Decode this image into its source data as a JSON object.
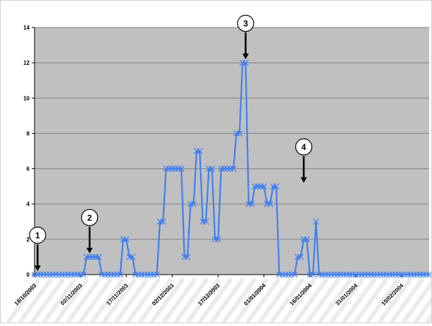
{
  "chart_data": {
    "type": "line",
    "title": "",
    "xlabel": "",
    "ylabel": "",
    "ylim": [
      0,
      14
    ],
    "yticks": [
      "0",
      "2",
      "4",
      "6",
      "8",
      "10",
      "12",
      "14"
    ],
    "xlim": [
      "2003-10-18",
      "2004-02-24"
    ],
    "xtick_labels": [
      "18/10/2003",
      "02/11/2003",
      "17/11/2003",
      "02/12/2003",
      "17/12/2003",
      "01/01/2004",
      "16/01/2004",
      "31/01/2004",
      "15/02/2004"
    ],
    "grid": {
      "horizontal": true,
      "vertical": false
    },
    "legend": "none",
    "colors": {
      "line": "#3f7ff0",
      "marker": "#3f7ff0",
      "plot_area": "#c0c0c0",
      "gridline": "#7f7f7f",
      "arrow": "#000000"
    },
    "series": [
      {
        "x": [
          "2003-10-18",
          "2003-10-19",
          "2003-10-20",
          "2003-10-21",
          "2003-10-22",
          "2003-10-23",
          "2003-10-24",
          "2003-10-25",
          "2003-10-26",
          "2003-10-27",
          "2003-10-28",
          "2003-10-29",
          "2003-10-30",
          "2003-10-31",
          "2003-11-01",
          "2003-11-02",
          "2003-11-03",
          "2003-11-04",
          "2003-11-05",
          "2003-11-06",
          "2003-11-07",
          "2003-11-08",
          "2003-11-09",
          "2003-11-10",
          "2003-11-11",
          "2003-11-12",
          "2003-11-13",
          "2003-11-14",
          "2003-11-15",
          "2003-11-16",
          "2003-11-17",
          "2003-11-18",
          "2003-11-19",
          "2003-11-20",
          "2003-11-21",
          "2003-11-22",
          "2003-11-23",
          "2003-11-24",
          "2003-11-25",
          "2003-11-26",
          "2003-11-27",
          "2003-11-28",
          "2003-11-29",
          "2003-11-30",
          "2003-12-01",
          "2003-12-02",
          "2003-12-03",
          "2003-12-04",
          "2003-12-05",
          "2003-12-06",
          "2003-12-07",
          "2003-12-08",
          "2003-12-09",
          "2003-12-10",
          "2003-12-11",
          "2003-12-12",
          "2003-12-13",
          "2003-12-14",
          "2003-12-15",
          "2003-12-16",
          "2003-12-17",
          "2003-12-18",
          "2003-12-19",
          "2003-12-20",
          "2003-12-21",
          "2003-12-22",
          "2003-12-23",
          "2003-12-24",
          "2003-12-25",
          "2003-12-26",
          "2003-12-27",
          "2003-12-28",
          "2003-12-29",
          "2003-12-30",
          "2003-12-31",
          "2004-01-01",
          "2004-01-02",
          "2004-01-03",
          "2004-01-04",
          "2004-01-05",
          "2004-01-06",
          "2004-01-07",
          "2004-01-08",
          "2004-01-09",
          "2004-01-10",
          "2004-01-11",
          "2004-01-12",
          "2004-01-13",
          "2004-01-14",
          "2004-01-15",
          "2004-01-16",
          "2004-01-17",
          "2004-01-18",
          "2004-01-19",
          "2004-01-20",
          "2004-01-21",
          "2004-01-22",
          "2004-01-23",
          "2004-01-24",
          "2004-01-25",
          "2004-01-26",
          "2004-01-27",
          "2004-01-28",
          "2004-01-29",
          "2004-01-30",
          "2004-01-31",
          "2004-02-01",
          "2004-02-02",
          "2004-02-03",
          "2004-02-04",
          "2004-02-05",
          "2004-02-06",
          "2004-02-07",
          "2004-02-08",
          "2004-02-09",
          "2004-02-10",
          "2004-02-11",
          "2004-02-12",
          "2004-02-13",
          "2004-02-14",
          "2004-02-15",
          "2004-02-16",
          "2004-02-17",
          "2004-02-18",
          "2004-02-19",
          "2004-02-20",
          "2004-02-21",
          "2004-02-22",
          "2004-02-23",
          "2004-02-24"
        ],
        "y": [
          0,
          0,
          0,
          0,
          0,
          0,
          0,
          0,
          0,
          0,
          0,
          0,
          0,
          0,
          0,
          0,
          0,
          1,
          1,
          1,
          1,
          1,
          0,
          0,
          0,
          0,
          0,
          0,
          0,
          2,
          2,
          1,
          1,
          0,
          0,
          0,
          0,
          0,
          0,
          0,
          0,
          3,
          3,
          6,
          6,
          6,
          6,
          6,
          6,
          1,
          1,
          4,
          4,
          7,
          7,
          3,
          3,
          6,
          6,
          2,
          2,
          6,
          6,
          6,
          6,
          6,
          8,
          8,
          12,
          12,
          4,
          4,
          5,
          5,
          5,
          5,
          4,
          4,
          5,
          5,
          0,
          0,
          0,
          0,
          0,
          0,
          1,
          1,
          2,
          2,
          0,
          0,
          3,
          0,
          0,
          0,
          0,
          0,
          0,
          0,
          0,
          0,
          0,
          0,
          0,
          0,
          0,
          0,
          0,
          0,
          0,
          0,
          0,
          0,
          0,
          0,
          0,
          0,
          0,
          0,
          0,
          0,
          0,
          0,
          0,
          0,
          0,
          0,
          0,
          0
        ]
      }
    ],
    "annotations": [
      {
        "label": "1",
        "x": "2003-10-19",
        "y": 0
      },
      {
        "label": "2",
        "x": "2003-11-05",
        "y": 1
      },
      {
        "label": "3",
        "x": "2003-12-26",
        "y": 12
      },
      {
        "label": "4",
        "x": "2004-01-14",
        "y": 5
      }
    ]
  }
}
